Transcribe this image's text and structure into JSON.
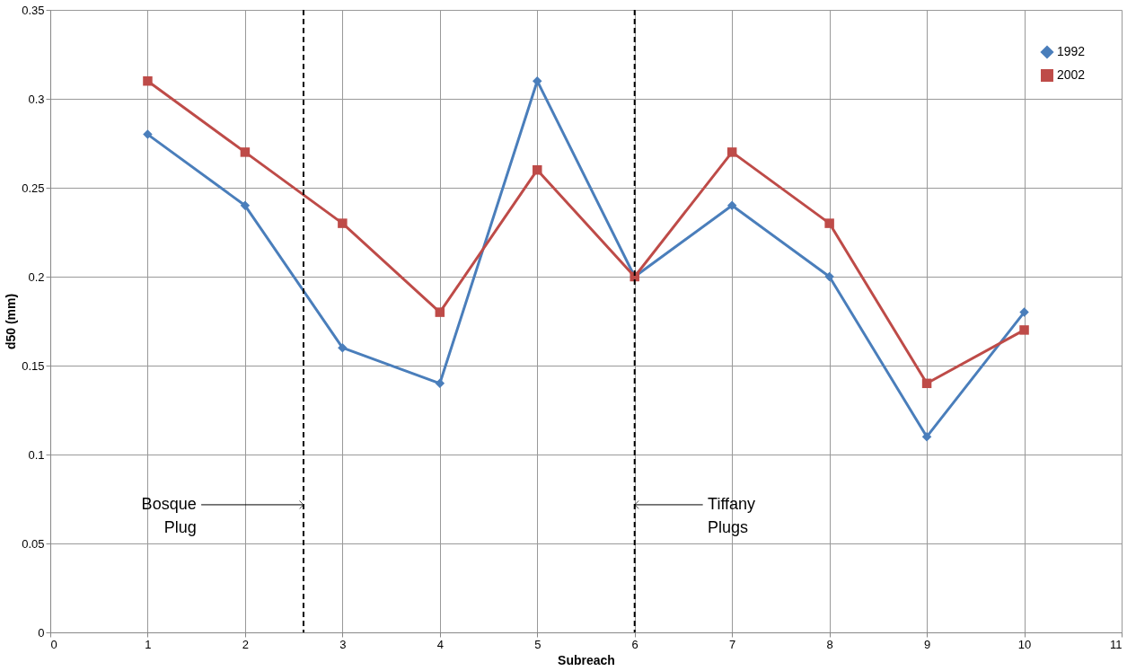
{
  "chart_data": {
    "type": "line",
    "xlabel": "Subreach",
    "ylabel": "d50 (mm)",
    "x": [
      1,
      2,
      3,
      4,
      5,
      6,
      7,
      8,
      9,
      10
    ],
    "series": [
      {
        "name": "1992",
        "color": "#4a7ebb",
        "marker": "diamond",
        "values": [
          0.28,
          0.24,
          0.16,
          0.14,
          0.31,
          0.2,
          0.24,
          0.2,
          0.11,
          0.18
        ]
      },
      {
        "name": "2002",
        "color": "#be4b48",
        "marker": "square",
        "values": [
          0.31,
          0.27,
          0.23,
          0.18,
          0.26,
          0.2,
          0.27,
          0.23,
          0.14,
          0.17
        ]
      }
    ],
    "ref_lines": [
      {
        "axis": "x",
        "value": 2.6,
        "label": "Bosque Plug",
        "color": "#000000",
        "line_style": "dashed"
      },
      {
        "axis": "x",
        "value": 6,
        "label": "Tiffany Plugs",
        "color": "#000000",
        "line_style": "dashed"
      }
    ],
    "xlim": [
      0,
      11
    ],
    "xticks": [
      0,
      1,
      2,
      3,
      4,
      5,
      6,
      7,
      8,
      9,
      10,
      11
    ],
    "ylim": [
      0,
      0.35
    ],
    "yticks": [
      0,
      0.05,
      0.1,
      0.15,
      0.2,
      0.25,
      0.3,
      0.35
    ],
    "grid": true,
    "legend": "top right",
    "line_style": "solid"
  }
}
